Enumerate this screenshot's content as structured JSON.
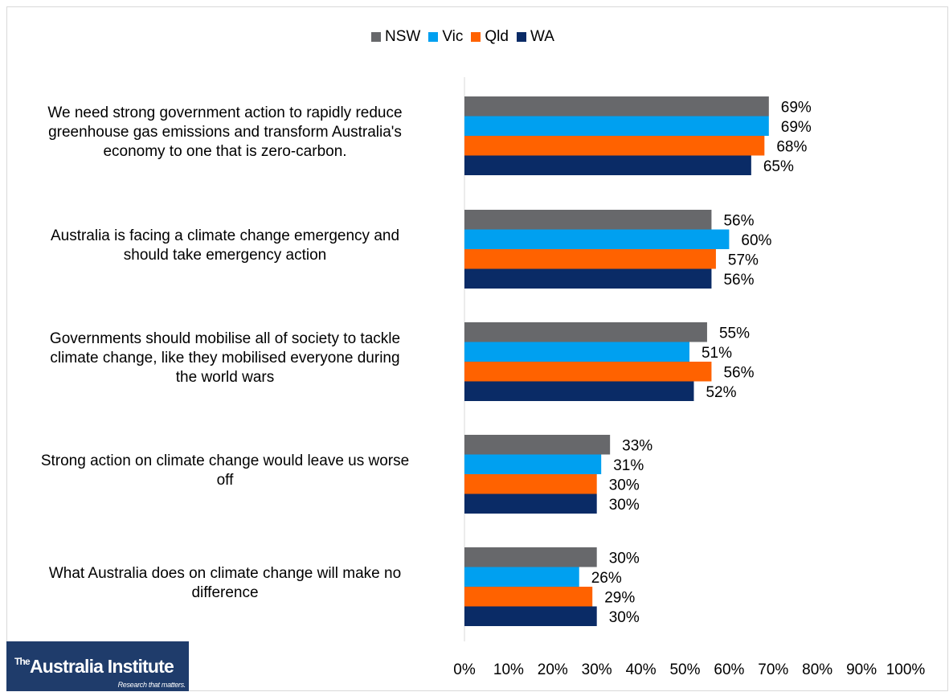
{
  "chart_data": {
    "type": "bar",
    "orientation": "horizontal",
    "categories": [
      "We need strong government action to rapidly reduce greenhouse gas emissions and transform Australia's economy to one that is zero-carbon.",
      "Australia is facing a climate change emergency and should take emergency action",
      "Governments should mobilise all of society to tackle climate change, like they mobilised everyone during the world wars",
      "Strong action on climate change would leave us worse off",
      "What Australia does on climate change will make no difference"
    ],
    "category_lines": [
      [
        "We need strong government action to rapidly reduce",
        "greenhouse gas emissions and transform Australia's",
        "economy to one that is zero-carbon."
      ],
      [
        "Australia is facing a climate change emergency and",
        "should take emergency action"
      ],
      [
        "Governments should mobilise all of society to tackle",
        "climate change, like they mobilised everyone during",
        "the world wars"
      ],
      [
        "Strong action on climate change would leave us worse",
        "off"
      ],
      [
        "What Australia does on climate change will make no",
        "difference"
      ]
    ],
    "series": [
      {
        "name": "NSW",
        "color": "#67686b",
        "values": [
          69,
          56,
          55,
          33,
          30
        ],
        "labels": [
          "69%",
          "56%",
          "55%",
          "33%",
          "30%"
        ]
      },
      {
        "name": "Vic",
        "color": "#00a0f0",
        "values": [
          69,
          60,
          51,
          31,
          26
        ],
        "labels": [
          "69%",
          "60%",
          "51%",
          "31%",
          "26%"
        ]
      },
      {
        "name": "Qld",
        "color": "#ff6200",
        "values": [
          68,
          57,
          56,
          30,
          29
        ],
        "labels": [
          "68%",
          "57%",
          "56%",
          "30%",
          "29%"
        ]
      },
      {
        "name": "WA",
        "color": "#0a2b66",
        "values": [
          65,
          56,
          52,
          30,
          30
        ],
        "labels": [
          "65%",
          "56%",
          "52%",
          "30%",
          "30%"
        ]
      }
    ],
    "xlim": [
      0,
      100
    ],
    "ticks": [
      {
        "value": 0,
        "label": "0%"
      },
      {
        "value": 10,
        "label": "10%"
      },
      {
        "value": 20,
        "label": "20%"
      },
      {
        "value": 30,
        "label": "30%"
      },
      {
        "value": 40,
        "label": "40%"
      },
      {
        "value": 50,
        "label": "50%"
      },
      {
        "value": 60,
        "label": "60%"
      },
      {
        "value": 70,
        "label": "70%"
      },
      {
        "value": 80,
        "label": "80%"
      },
      {
        "value": 90,
        "label": "90%"
      },
      {
        "value": 100,
        "label": "100%"
      }
    ],
    "grid": false,
    "legend_position": "top",
    "title": "",
    "xlabel": "",
    "ylabel": ""
  },
  "logo": {
    "main": "The Australia Institute",
    "main_prefix": "The",
    "main_name": "Australia Institute",
    "tagline": "Research that matters.",
    "background": "#1f3c6b"
  }
}
